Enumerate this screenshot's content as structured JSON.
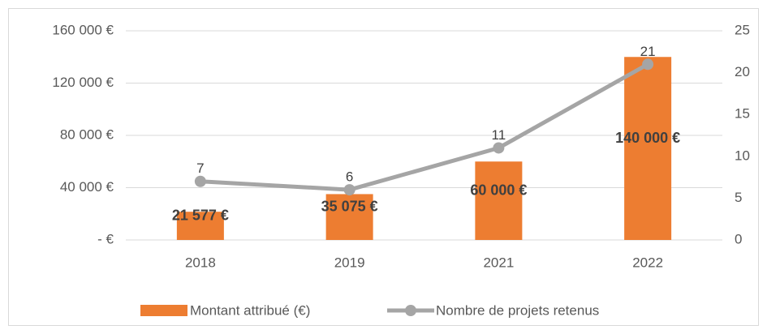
{
  "chart_data": {
    "type": "bar_line",
    "categories": [
      "2018",
      "2019",
      "2021",
      "2022"
    ],
    "series": [
      {
        "name": "Montant attribué (€)",
        "color": "#ED7D31",
        "type": "bar",
        "values": [
          21577,
          35075,
          60000,
          140000
        ],
        "value_labels": [
          "21 577 €",
          "35 075 €",
          "60 000 €",
          "140 000 €"
        ]
      },
      {
        "name": "Nombre de projets retenus",
        "color": "#A5A5A5",
        "type": "line",
        "axis": "y2",
        "values": [
          7,
          6,
          11,
          21
        ]
      }
    ],
    "ylim": [
      0,
      160000
    ],
    "yticks": [
      {
        "value": 0,
        "label": "-  €"
      },
      {
        "value": 40000,
        "label": "40 000 €"
      },
      {
        "value": 80000,
        "label": "80 000 €"
      },
      {
        "value": 120000,
        "label": "120 000 €"
      },
      {
        "value": 160000,
        "label": "160 000 €"
      }
    ],
    "y2lim": [
      0,
      25
    ],
    "y2ticks": [
      0,
      5,
      10,
      15,
      20,
      25
    ],
    "grid": true,
    "legend": "bottom"
  }
}
